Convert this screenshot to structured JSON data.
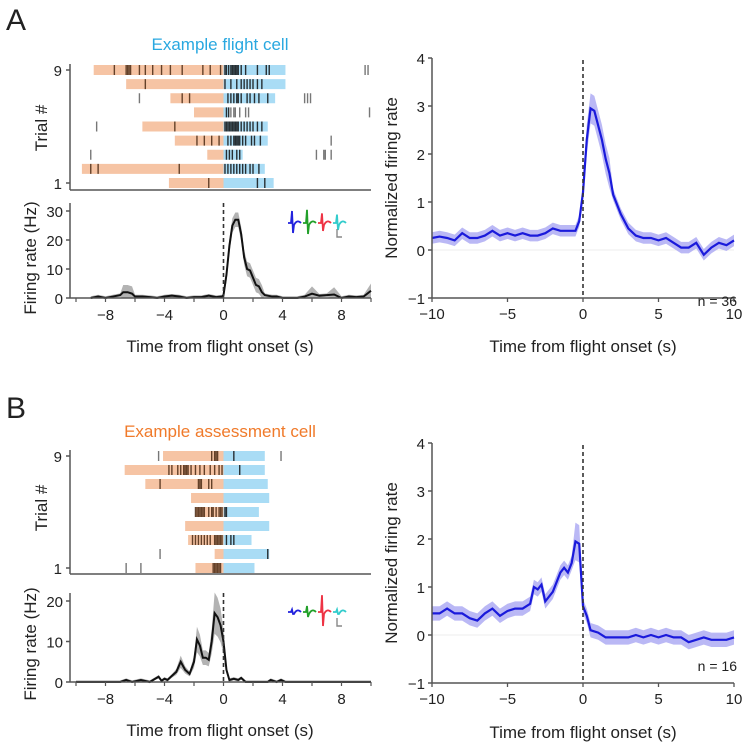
{
  "panels": [
    {
      "letter": "A",
      "raster": {
        "title": "Example flight cell",
        "title_color": "#29a8e0",
        "ylabel": "Trial #",
        "yticks": [
          "9",
          "1"
        ],
        "pre_color": "#f6c4a4",
        "post_color": "#a9dcf5",
        "trials": [
          {
            "trial": 9,
            "pre_start": -8.8,
            "post_end": 4.2,
            "spikes": [
              -7.4,
              -6.6,
              -6.5,
              -6.4,
              -6.3,
              -5.7,
              -5.3,
              -4.8,
              -4.2,
              -3.6,
              -2.8,
              -1.4,
              -0.9,
              -0.2,
              0.1,
              0.2,
              0.35,
              0.5,
              0.6,
              0.7,
              0.8,
              0.9,
              1.0,
              1.2,
              1.5,
              2.3,
              2.9,
              3.1,
              9.6,
              9.8
            ]
          },
          {
            "trial": 8,
            "pre_start": -6.6,
            "post_end": 4.2,
            "spikes": [
              -5.3,
              0.1,
              0.5,
              0.9,
              1.2,
              1.4,
              1.6,
              1.8,
              2.0,
              2.3,
              2.6
            ]
          },
          {
            "trial": 7,
            "pre_start": -3.6,
            "post_end": 3.5,
            "spikes": [
              -5.7,
              -2.8,
              -2.3,
              0.3,
              0.5,
              0.7,
              0.9,
              1.0,
              1.2,
              1.6,
              1.8,
              2.1,
              2.4,
              3.0,
              5.5,
              5.7,
              5.9
            ]
          },
          {
            "trial": 6,
            "pre_start": -2.0,
            "post_end": 0.4,
            "spikes": [
              0.2,
              0.35,
              0.5,
              0.7,
              0.8,
              1.1,
              1.5,
              1.7,
              9.9
            ]
          },
          {
            "trial": 5,
            "pre_start": -5.5,
            "post_end": 3.0,
            "spikes": [
              -8.6,
              -3.3,
              0.1,
              0.2,
              0.3,
              0.4,
              0.5,
              0.6,
              0.7,
              0.8,
              0.9,
              1.0,
              1.2,
              1.4,
              1.6,
              1.8,
              2.0,
              2.3,
              2.6
            ]
          },
          {
            "trial": 4,
            "pre_start": -3.3,
            "post_end": 3.0,
            "spikes": [
              -1.8,
              -1.3,
              -0.8,
              -0.3,
              0.3,
              0.5,
              0.7,
              0.8,
              0.9,
              1.0,
              1.1,
              1.3,
              1.5,
              1.9,
              2.1,
              2.5,
              7.3
            ]
          },
          {
            "trial": 3,
            "pre_start": -1.1,
            "post_end": 1.3,
            "spikes": [
              -9.0,
              0.2,
              0.4,
              0.6,
              0.9,
              1.1,
              6.3,
              6.8,
              6.9,
              7.3
            ]
          },
          {
            "trial": 2,
            "pre_start": -9.6,
            "post_end": 2.8,
            "spikes": [
              -9.0,
              -8.5,
              -3.0,
              0.1,
              0.3,
              0.5,
              0.7,
              0.9,
              1.1,
              1.3,
              1.5,
              1.8,
              2.0,
              2.4
            ]
          },
          {
            "trial": 1,
            "pre_start": -3.7,
            "post_end": 3.4,
            "spikes": [
              -1.0,
              2.3,
              2.8
            ]
          }
        ]
      },
      "psth": {
        "ylabel": "Firing rate (Hz)",
        "xlabel": "Time from flight onset (s)",
        "yticks": [
          0,
          10,
          20,
          30
        ],
        "ylim": [
          0,
          32
        ],
        "xticks": [
          -8,
          -4,
          0,
          4,
          8
        ],
        "xtick_labels": [
          "−8",
          "−4",
          "0",
          "4",
          "8"
        ],
        "xlim": [
          -10,
          10
        ],
        "x": [
          -9,
          -8.5,
          -8,
          -7.5,
          -7,
          -6.8,
          -6.5,
          -6.2,
          -6,
          -5.5,
          -5,
          -4.5,
          -4,
          -3.5,
          -3,
          -2.5,
          -2,
          -1.5,
          -1,
          -0.5,
          -0.1,
          0,
          0.2,
          0.4,
          0.6,
          0.8,
          1.0,
          1.2,
          1.4,
          1.6,
          1.8,
          2.0,
          2.2,
          2.4,
          2.6,
          2.8,
          3.0,
          3.3,
          3.6,
          4,
          4.5,
          5,
          5.5,
          6,
          6.5,
          7,
          7.5,
          8,
          8.5,
          9,
          9.5,
          10
        ],
        "y": [
          0,
          0.5,
          0,
          0.5,
          1,
          2,
          2,
          1.5,
          0.5,
          0.5,
          0.3,
          0,
          0.5,
          0.8,
          0.5,
          0,
          0.3,
          0.3,
          0.8,
          0.3,
          0.5,
          1,
          8,
          18,
          25,
          27,
          27,
          22,
          14,
          10,
          9.5,
          7,
          4.5,
          4,
          2,
          1,
          0.8,
          0.5,
          0.5,
          0,
          0,
          0,
          0.5,
          1.5,
          0.8,
          1,
          1.2,
          0,
          0.5,
          0.3,
          0.5,
          2.5
        ],
        "sem": 2.5
      },
      "waveform_colors": [
        "#2222dd",
        "#22a02a",
        "#ee3344",
        "#33cccc"
      ],
      "population": {
        "ylabel": "Normalized firing rate",
        "xlabel": "Time from flight onset (s)",
        "yticks": [
          -1,
          0,
          1,
          2,
          3,
          4
        ],
        "xticks": [
          -10,
          -5,
          0,
          5,
          10
        ],
        "xtick_labels": [
          "−10",
          "−5",
          "0",
          "5",
          "10"
        ],
        "ytick_labels": [
          "−1",
          "0",
          "1",
          "2",
          "3",
          "4"
        ],
        "n_label": "n = 36",
        "line_color": "#1a1adb",
        "band_color": "#a9a6f2",
        "x": [
          -10,
          -9.5,
          -9,
          -8.5,
          -8,
          -7.5,
          -7,
          -6.5,
          -6,
          -5.5,
          -5,
          -4.5,
          -4,
          -3.5,
          -3,
          -2.5,
          -2,
          -1.5,
          -1,
          -0.5,
          -0.25,
          0,
          0.25,
          0.5,
          0.75,
          1.0,
          1.25,
          1.5,
          1.75,
          2.0,
          2.5,
          3.0,
          3.5,
          4.0,
          4.5,
          5.0,
          5.5,
          6.0,
          6.5,
          7.0,
          7.5,
          8.0,
          8.5,
          9.0,
          9.5,
          10
        ],
        "y": [
          0.25,
          0.28,
          0.25,
          0.2,
          0.35,
          0.25,
          0.25,
          0.3,
          0.4,
          0.3,
          0.35,
          0.3,
          0.35,
          0.3,
          0.3,
          0.35,
          0.45,
          0.4,
          0.4,
          0.4,
          0.6,
          1.2,
          2.3,
          2.95,
          2.9,
          2.6,
          2.3,
          1.9,
          1.6,
          1.15,
          0.75,
          0.45,
          0.3,
          0.25,
          0.25,
          0.2,
          0.25,
          0.15,
          0.05,
          0.05,
          0.15,
          -0.1,
          0.05,
          0.15,
          0.1,
          0.2
        ],
        "sem": 0.12
      }
    },
    {
      "letter": "B",
      "raster": {
        "title": "Example assessment cell",
        "title_color": "#f07a2a",
        "ylabel": "Trial #",
        "yticks": [
          "9",
          "1"
        ],
        "pre_color": "#f6c4a4",
        "post_color": "#a9dcf5",
        "trials": [
          {
            "trial": 9,
            "pre_start": -4.1,
            "post_end": 2.8,
            "spikes": [
              -4.4,
              -0.8,
              -0.6,
              -0.5,
              -0.4,
              0.7,
              3.9
            ]
          },
          {
            "trial": 8,
            "pre_start": -6.7,
            "post_end": 2.8,
            "spikes": [
              -3.7,
              -3.5,
              -3.1,
              -2.9,
              -2.7,
              -2.6,
              -2.5,
              -2.4,
              -2.2,
              -1.9,
              -1.6,
              -1.3,
              -0.9,
              -0.6,
              -0.3,
              -0.1,
              1.1
            ]
          },
          {
            "trial": 7,
            "pre_start": -5.3,
            "post_end": 3.0,
            "spikes": [
              -4.3,
              -1.7,
              -1.6,
              -1.5,
              -1.0,
              -0.8
            ]
          },
          {
            "trial": 6,
            "pre_start": -2.2,
            "post_end": 3.1,
            "spikes": []
          },
          {
            "trial": 5,
            "pre_start": -1.9,
            "post_end": 2.4,
            "spikes": [
              -1.9,
              -1.8,
              -1.7,
              -1.6,
              -1.5,
              -1.4,
              -1.3,
              -1.0,
              -0.8,
              -0.7,
              -0.5,
              -0.3,
              -0.2,
              -0.1,
              0.1,
              0.2
            ]
          },
          {
            "trial": 4,
            "pre_start": -2.6,
            "post_end": 3.1,
            "spikes": []
          },
          {
            "trial": 3,
            "pre_start": -2.4,
            "post_end": 1.9,
            "spikes": [
              -2.1,
              -1.9,
              -1.7,
              -1.5,
              -1.3,
              -1.1,
              -0.9,
              -0.6,
              -0.5,
              -0.4,
              -0.3,
              -0.2,
              -0.1,
              0.2,
              0.5,
              0.7
            ]
          },
          {
            "trial": 2,
            "pre_start": -0.6,
            "post_end": 3.1,
            "spikes": [
              -4.3,
              3.0
            ]
          },
          {
            "trial": 1,
            "pre_start": -1.9,
            "post_end": 2.1,
            "spikes": [
              -6.6,
              -5.6,
              -0.7,
              -0.6,
              -0.5,
              -0.4,
              -0.3,
              -0.2
            ]
          }
        ]
      },
      "psth": {
        "ylabel": "Firing rate (Hz)",
        "xlabel": "Time from flight onset (s)",
        "yticks": [
          0,
          10,
          20
        ],
        "ylim": [
          0,
          24
        ],
        "xticks": [
          -8,
          -4,
          0,
          4,
          8
        ],
        "xtick_labels": [
          "−8",
          "−4",
          "0",
          "4",
          "8"
        ],
        "xlim": [
          -10,
          10
        ],
        "x": [
          -10,
          -7,
          -6.6,
          -6.2,
          -5.6,
          -5,
          -4.4,
          -4.2,
          -4,
          -3.8,
          -3.5,
          -3.2,
          -2.9,
          -2.6,
          -2.3,
          -2.0,
          -1.8,
          -1.6,
          -1.4,
          -1.2,
          -1.0,
          -0.8,
          -0.6,
          -0.4,
          -0.2,
          0,
          0.2,
          0.4,
          0.7,
          1.0,
          1.2,
          1.5,
          2,
          3,
          3.2,
          3.6,
          3.9,
          4.2,
          10
        ],
        "y": [
          0,
          0,
          0.5,
          0,
          0.5,
          0,
          1.3,
          0.3,
          0.8,
          0.5,
          1.5,
          2.5,
          5,
          3,
          2,
          5,
          10.5,
          9,
          6,
          6,
          5.5,
          10,
          17,
          16,
          14,
          10,
          3,
          0.5,
          0.8,
          0.5,
          1,
          0,
          0,
          0,
          0.5,
          0,
          0.5,
          0,
          0
        ],
        "sem_scale": 0.3
      },
      "waveform_colors": [
        "#2222dd",
        "#22a02a",
        "#ee3344",
        "#33cccc"
      ],
      "population": {
        "ylabel": "Normalized firing rate",
        "xlabel": "Time from flight onset (s)",
        "yticks": [
          -1,
          0,
          1,
          2,
          3,
          4
        ],
        "xticks": [
          -10,
          -5,
          0,
          5,
          10
        ],
        "xtick_labels": [
          "−10",
          "−5",
          "0",
          "5",
          "10"
        ],
        "ytick_labels": [
          "−1",
          "0",
          "1",
          "2",
          "3",
          "4"
        ],
        "n_label": "n = 16",
        "line_color": "#1a1adb",
        "band_color": "#a9a6f2",
        "x": [
          -10,
          -9.5,
          -9,
          -8.5,
          -8,
          -7.5,
          -7,
          -6.5,
          -6,
          -5.5,
          -5,
          -4.5,
          -4,
          -3.5,
          -3.25,
          -3,
          -2.75,
          -2.5,
          -2,
          -1.5,
          -1.25,
          -1,
          -0.75,
          -0.5,
          -0.25,
          0,
          0.25,
          0.5,
          1,
          1.5,
          2,
          2.5,
          3,
          3.5,
          4,
          4.5,
          5,
          5.5,
          6,
          6.5,
          7,
          7.5,
          8,
          8.5,
          9,
          9.5,
          10
        ],
        "y": [
          0.45,
          0.45,
          0.55,
          0.45,
          0.45,
          0.35,
          0.3,
          0.45,
          0.55,
          0.4,
          0.5,
          0.55,
          0.55,
          0.65,
          1.0,
          0.95,
          1.05,
          0.7,
          0.9,
          1.3,
          1.4,
          1.3,
          1.5,
          1.95,
          1.9,
          0.6,
          0.4,
          0.1,
          0.05,
          -0.05,
          -0.05,
          -0.05,
          -0.05,
          0,
          -0.05,
          0,
          -0.05,
          0,
          -0.05,
          -0.05,
          -0.15,
          -0.1,
          -0.05,
          -0.1,
          -0.1,
          -0.1,
          -0.05
        ],
        "sem": 0.15
      }
    }
  ]
}
